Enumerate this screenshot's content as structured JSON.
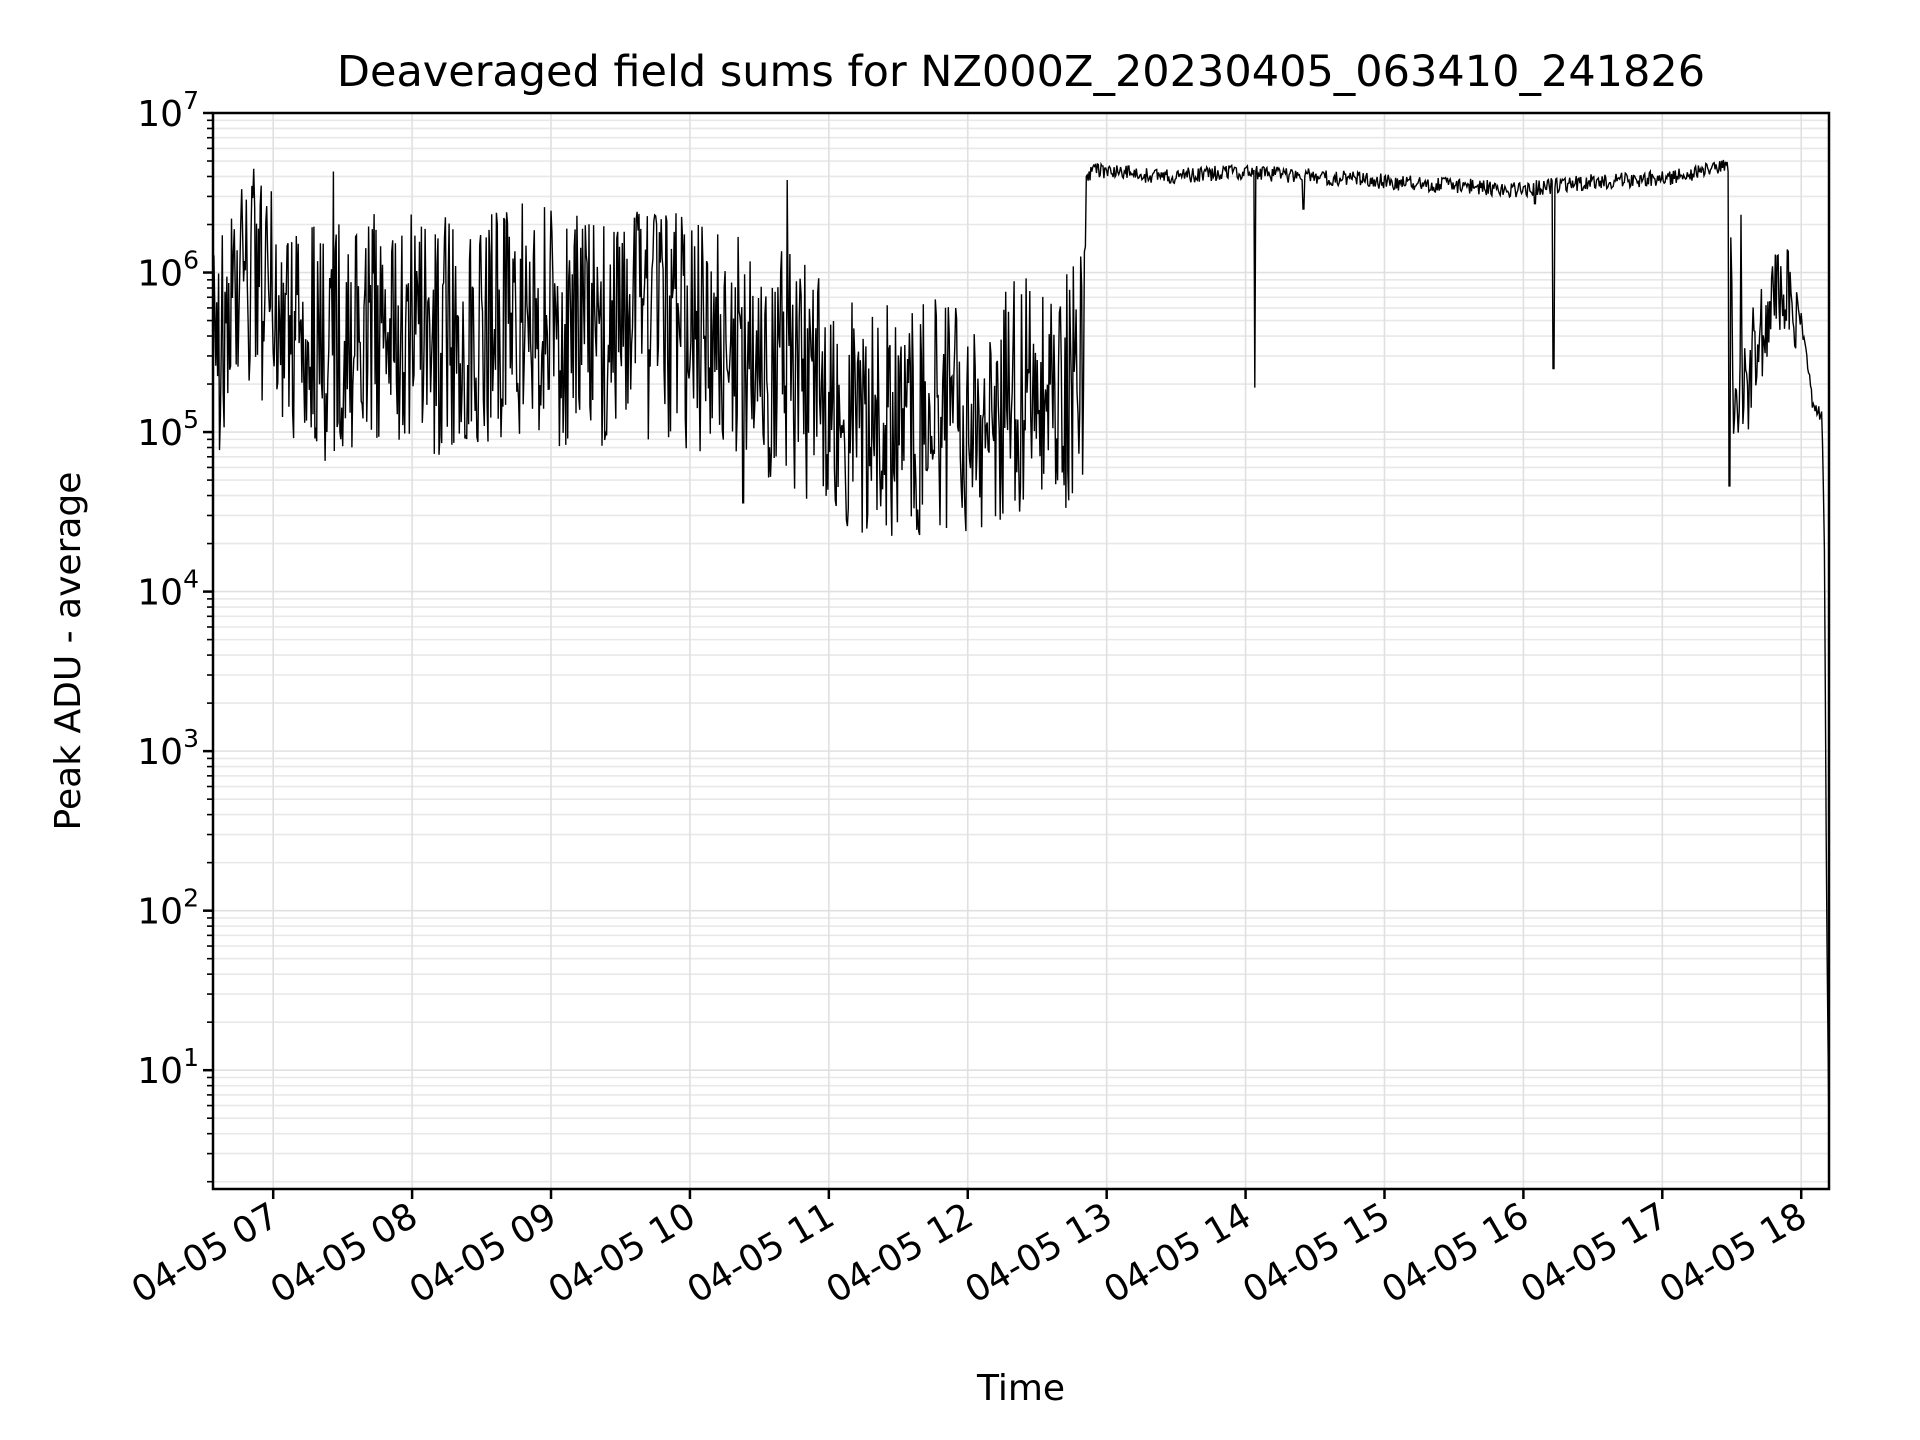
{
  "chart_data": {
    "type": "line",
    "title": "Deaveraged field sums for NZ000Z_20230405_063410_241826",
    "xlabel": "Time",
    "ylabel": "Peak ADU - average",
    "yscale": "log",
    "grid": true,
    "grid_minor": true,
    "xlim": [
      "2023-04-05 06:34",
      "2023-04-05 18:12"
    ],
    "ylim": [
      1.8,
      10000000
    ],
    "x_ticks": [
      "04-05 07",
      "04-05 08",
      "04-05 09",
      "04-05 10",
      "04-05 11",
      "04-05 12",
      "04-05 13",
      "04-05 14",
      "04-05 15",
      "04-05 16",
      "04-05 17",
      "04-05 18"
    ],
    "y_ticks": [
      {
        "base": "10",
        "exp": "1"
      },
      {
        "base": "10",
        "exp": "2"
      },
      {
        "base": "10",
        "exp": "3"
      },
      {
        "base": "10",
        "exp": "4"
      },
      {
        "base": "10",
        "exp": "5"
      },
      {
        "base": "10",
        "exp": "6"
      },
      {
        "base": "10",
        "exp": "7"
      }
    ],
    "series": [
      {
        "color": "#000000",
        "x": [
          "06:34",
          "06:40",
          "06:45",
          "06:50",
          "06:55",
          "07:00",
          "07:10",
          "07:20",
          "07:30",
          "07:40",
          "07:50",
          "08:00",
          "08:15",
          "08:30",
          "08:45",
          "09:00",
          "09:15",
          "09:30",
          "09:45",
          "10:00",
          "10:15",
          "10:30",
          "10:45",
          "11:00",
          "11:15",
          "11:30",
          "11:45",
          "12:00",
          "12:15",
          "12:30",
          "12:40",
          "12:50",
          "12:51",
          "13:00",
          "13:15",
          "13:30",
          "13:45",
          "14:00",
          "14:04",
          "14:15",
          "14:30",
          "14:45",
          "15:00",
          "15:15",
          "15:30",
          "15:45",
          "16:00",
          "16:13",
          "16:30",
          "16:45",
          "17:00",
          "17:15",
          "17:25",
          "17:29",
          "17:31",
          "17:35",
          "17:40",
          "17:45",
          "17:50",
          "17:55",
          "18:00",
          "18:03",
          "18:05",
          "18:07",
          "18:09",
          "18:10",
          "18:11",
          "18:12"
        ],
        "y": [
          350000,
          400000,
          700000,
          900000,
          750000,
          600000,
          450000,
          350000,
          400000,
          450000,
          380000,
          420000,
          400000,
          450000,
          500000,
          450000,
          420000,
          500000,
          450000,
          400000,
          350000,
          300000,
          250000,
          150000,
          120000,
          110000,
          130000,
          120000,
          150000,
          200000,
          150000,
          300000,
          4200000,
          4400000,
          4100000,
          4000000,
          4200000,
          4300000,
          4300000,
          4100000,
          4000000,
          3900000,
          3700000,
          3600000,
          3500000,
          3400000,
          3300000,
          3500000,
          3700000,
          3800000,
          3900000,
          4200000,
          4500000,
          4800000,
          150000,
          180000,
          300000,
          600000,
          900000,
          950000,
          500000,
          250000,
          150000,
          140000,
          120000,
          20000,
          100,
          4
        ]
      }
    ]
  }
}
